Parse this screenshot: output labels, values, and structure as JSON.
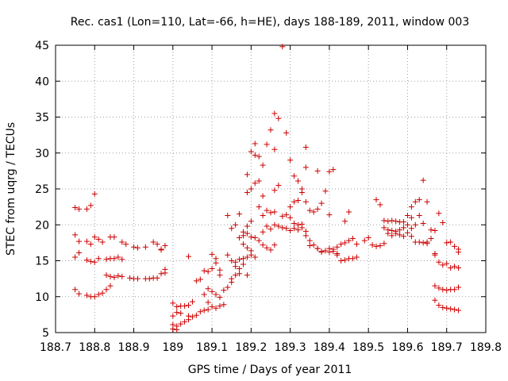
{
  "chart_data": {
    "type": "scatter",
    "title": "Rec. cas1 (Lon=110, Lat=-66, h=HE), days 188-189, 2011, window 003",
    "xlabel": "GPS time / Days of year 2011",
    "ylabel": "STEC from uqrg / TECUs",
    "xlim": [
      188.7,
      189.8
    ],
    "ylim": [
      5,
      45
    ],
    "grid": true,
    "marker": "+",
    "color": "#cc0000",
    "x_ticks": [
      188.7,
      188.8,
      188.9,
      189.0,
      189.1,
      189.2,
      189.3,
      189.4,
      189.5,
      189.6,
      189.7,
      189.8
    ],
    "x_tick_labels": [
      "188.7",
      "188.8",
      "188.9",
      "189",
      "189.1",
      "189.2",
      "189.3",
      "189.4",
      "189.5",
      "189.6",
      "189.7",
      "189.8"
    ],
    "y_ticks": [
      5,
      10,
      15,
      20,
      25,
      30,
      35,
      40,
      45
    ],
    "y_tick_labels": [
      "5",
      "10",
      "15",
      "20",
      "25",
      "30",
      "35",
      "40",
      "45"
    ],
    "points": [
      [
        188.75,
        22.4
      ],
      [
        188.76,
        22.2
      ],
      [
        188.78,
        22.2
      ],
      [
        188.79,
        22.7
      ],
      [
        188.8,
        24.3
      ],
      [
        188.75,
        18.6
      ],
      [
        188.76,
        17.7
      ],
      [
        188.78,
        17.7
      ],
      [
        188.79,
        17.3
      ],
      [
        188.8,
        18.3
      ],
      [
        188.81,
        18.0
      ],
      [
        188.82,
        17.6
      ],
      [
        188.84,
        18.3
      ],
      [
        188.85,
        18.3
      ],
      [
        188.87,
        17.6
      ],
      [
        188.88,
        17.3
      ],
      [
        188.9,
        16.9
      ],
      [
        188.91,
        16.8
      ],
      [
        188.93,
        16.9
      ],
      [
        188.95,
        17.6
      ],
      [
        188.96,
        17.3
      ],
      [
        188.97,
        16.6
      ],
      [
        188.98,
        17.1
      ],
      [
        188.75,
        15.5
      ],
      [
        188.76,
        16.1
      ],
      [
        188.78,
        15.1
      ],
      [
        188.79,
        14.9
      ],
      [
        188.8,
        14.8
      ],
      [
        188.81,
        15.3
      ],
      [
        188.83,
        15.2
      ],
      [
        188.84,
        15.3
      ],
      [
        188.85,
        15.3
      ],
      [
        188.86,
        15.5
      ],
      [
        188.87,
        15.2
      ],
      [
        188.97,
        16.5
      ],
      [
        188.83,
        13.0
      ],
      [
        188.84,
        12.8
      ],
      [
        188.85,
        12.7
      ],
      [
        188.86,
        12.9
      ],
      [
        188.87,
        12.8
      ],
      [
        188.89,
        12.6
      ],
      [
        188.9,
        12.5
      ],
      [
        188.91,
        12.5
      ],
      [
        188.93,
        12.5
      ],
      [
        188.94,
        12.5
      ],
      [
        188.95,
        12.6
      ],
      [
        188.96,
        12.6
      ],
      [
        188.97,
        13.2
      ],
      [
        188.98,
        13.8
      ],
      [
        188.98,
        13.3
      ],
      [
        188.75,
        11.0
      ],
      [
        188.76,
        10.4
      ],
      [
        188.78,
        10.2
      ],
      [
        188.79,
        10.0
      ],
      [
        188.8,
        10.0
      ],
      [
        188.81,
        10.3
      ],
      [
        188.82,
        10.5
      ],
      [
        188.83,
        11.0
      ],
      [
        188.84,
        11.5
      ],
      [
        189.0,
        9.1
      ],
      [
        189.01,
        8.6
      ],
      [
        189.02,
        8.7
      ],
      [
        189.03,
        8.7
      ],
      [
        189.04,
        8.8
      ],
      [
        189.05,
        9.3
      ],
      [
        189.0,
        7.3
      ],
      [
        189.01,
        7.8
      ],
      [
        189.02,
        7.7
      ],
      [
        189.04,
        7.3
      ],
      [
        189.05,
        7.2
      ],
      [
        189.06,
        7.4
      ],
      [
        189.07,
        7.9
      ],
      [
        189.08,
        8.1
      ],
      [
        189.09,
        8.2
      ],
      [
        189.0,
        6.1
      ],
      [
        189.01,
        5.9
      ],
      [
        189.02,
        6.2
      ],
      [
        189.03,
        6.5
      ],
      [
        189.04,
        6.8
      ],
      [
        189.0,
        5.5
      ],
      [
        189.01,
        5.4
      ],
      [
        189.04,
        15.6
      ],
      [
        189.06,
        12.2
      ],
      [
        189.07,
        12.4
      ],
      [
        189.08,
        13.6
      ],
      [
        189.09,
        13.5
      ],
      [
        189.1,
        13.9
      ],
      [
        189.1,
        15.9
      ],
      [
        189.11,
        15.3
      ],
      [
        189.11,
        14.7
      ],
      [
        189.12,
        13.7
      ],
      [
        189.12,
        13.0
      ],
      [
        189.08,
        10.3
      ],
      [
        189.09,
        11.1
      ],
      [
        189.1,
        10.7
      ],
      [
        189.11,
        10.3
      ],
      [
        189.12,
        9.9
      ],
      [
        189.13,
        10.9
      ],
      [
        189.14,
        11.3
      ],
      [
        189.15,
        12.0
      ],
      [
        189.09,
        9.2
      ],
      [
        189.1,
        8.6
      ],
      [
        189.11,
        8.4
      ],
      [
        189.12,
        8.7
      ],
      [
        189.13,
        8.9
      ],
      [
        189.14,
        21.3
      ],
      [
        189.15,
        19.5
      ],
      [
        189.16,
        20.0
      ],
      [
        189.17,
        21.5
      ],
      [
        189.18,
        19.0
      ],
      [
        189.19,
        19.8
      ],
      [
        189.2,
        20.5
      ],
      [
        189.14,
        15.8
      ],
      [
        189.15,
        15.0
      ],
      [
        189.16,
        14.8
      ],
      [
        189.17,
        15.2
      ],
      [
        189.18,
        15.3
      ],
      [
        189.19,
        15.5
      ],
      [
        189.2,
        15.8
      ],
      [
        189.21,
        15.5
      ],
      [
        189.2,
        16.4
      ],
      [
        189.19,
        16.8
      ],
      [
        189.18,
        17.3
      ],
      [
        189.15,
        12.5
      ],
      [
        189.16,
        13.0
      ],
      [
        189.17,
        13.2
      ],
      [
        189.17,
        13.9
      ],
      [
        189.18,
        14.5
      ],
      [
        189.19,
        13.0
      ],
      [
        189.16,
        14.2
      ],
      [
        189.17,
        18.2
      ],
      [
        189.18,
        18.5
      ],
      [
        189.19,
        18.8
      ],
      [
        189.2,
        18.3
      ],
      [
        189.21,
        18.2
      ],
      [
        189.22,
        17.8
      ],
      [
        189.23,
        19.0
      ],
      [
        189.24,
        19.8
      ],
      [
        189.25,
        19.4
      ],
      [
        189.26,
        20.0
      ],
      [
        189.27,
        19.8
      ],
      [
        189.28,
        19.6
      ],
      [
        189.29,
        19.5
      ],
      [
        189.3,
        19.2
      ],
      [
        189.31,
        19.5
      ],
      [
        189.32,
        19.3
      ],
      [
        189.33,
        19.6
      ],
      [
        189.34,
        19.1
      ],
      [
        189.35,
        17.8
      ],
      [
        189.36,
        17.2
      ],
      [
        189.37,
        16.7
      ],
      [
        189.38,
        16.3
      ],
      [
        189.39,
        16.4
      ],
      [
        189.4,
        16.2
      ],
      [
        189.41,
        16.6
      ],
      [
        189.42,
        16.0
      ],
      [
        189.19,
        24.5
      ],
      [
        189.2,
        25.0
      ],
      [
        189.21,
        25.8
      ],
      [
        189.22,
        26.1
      ],
      [
        189.19,
        27.0
      ],
      [
        189.2,
        30.2
      ],
      [
        189.21,
        29.7
      ],
      [
        189.21,
        31.3
      ],
      [
        189.22,
        29.5
      ],
      [
        189.23,
        28.3
      ],
      [
        189.24,
        31.2
      ],
      [
        189.25,
        33.2
      ],
      [
        189.26,
        35.5
      ],
      [
        189.27,
        34.8
      ],
      [
        189.26,
        30.5
      ],
      [
        189.28,
        44.8
      ],
      [
        189.29,
        32.8
      ],
      [
        189.3,
        29.0
      ],
      [
        189.31,
        26.8
      ],
      [
        189.32,
        26.1
      ],
      [
        189.33,
        25.0
      ],
      [
        189.34,
        30.8
      ],
      [
        189.34,
        28.0
      ],
      [
        189.37,
        27.5
      ],
      [
        189.39,
        24.7
      ],
      [
        189.4,
        27.4
      ],
      [
        189.41,
        27.7
      ],
      [
        189.22,
        22.5
      ],
      [
        189.23,
        24.0
      ],
      [
        189.23,
        21.3
      ],
      [
        189.24,
        22.0
      ],
      [
        189.25,
        21.7
      ],
      [
        189.26,
        21.8
      ],
      [
        189.26,
        24.8
      ],
      [
        189.27,
        25.5
      ],
      [
        189.28,
        21.2
      ],
      [
        189.29,
        21.4
      ],
      [
        189.3,
        21.0
      ],
      [
        189.3,
        22.5
      ],
      [
        189.31,
        23.2
      ],
      [
        189.32,
        23.4
      ],
      [
        189.33,
        24.5
      ],
      [
        189.34,
        23.2
      ],
      [
        189.35,
        22.0
      ],
      [
        189.36,
        21.8
      ],
      [
        189.37,
        22.2
      ],
      [
        189.38,
        23.0
      ],
      [
        189.4,
        21.4
      ],
      [
        189.23,
        17.2
      ],
      [
        189.24,
        16.8
      ],
      [
        189.25,
        16.5
      ],
      [
        189.26,
        17.2
      ],
      [
        189.31,
        20.2
      ],
      [
        189.32,
        20.0
      ],
      [
        189.33,
        20.1
      ],
      [
        189.34,
        18.5
      ],
      [
        189.35,
        17.1
      ],
      [
        189.37,
        16.7
      ],
      [
        189.38,
        16.2
      ],
      [
        189.4,
        16.7
      ],
      [
        189.41,
        16.3
      ],
      [
        189.42,
        15.8
      ],
      [
        189.43,
        15.0
      ],
      [
        189.44,
        15.1
      ],
      [
        189.45,
        15.3
      ],
      [
        189.46,
        15.3
      ],
      [
        189.47,
        15.5
      ],
      [
        189.47,
        17.3
      ],
      [
        189.49,
        17.8
      ],
      [
        189.5,
        18.2
      ],
      [
        189.51,
        17.2
      ],
      [
        189.52,
        17.0
      ],
      [
        189.53,
        17.1
      ],
      [
        189.54,
        17.4
      ],
      [
        189.42,
        16.9
      ],
      [
        189.43,
        17.3
      ],
      [
        189.44,
        17.5
      ],
      [
        189.45,
        17.8
      ],
      [
        189.46,
        18.1
      ],
      [
        189.44,
        20.5
      ],
      [
        189.45,
        21.8
      ],
      [
        189.52,
        23.5
      ],
      [
        189.53,
        22.8
      ],
      [
        189.54,
        20.6
      ],
      [
        189.55,
        20.5
      ],
      [
        189.56,
        20.6
      ],
      [
        189.57,
        20.5
      ],
      [
        189.58,
        20.4
      ],
      [
        189.59,
        20.4
      ],
      [
        189.6,
        21.3
      ],
      [
        189.61,
        21.0
      ],
      [
        189.62,
        23.2
      ],
      [
        189.63,
        23.5
      ],
      [
        189.64,
        26.2
      ],
      [
        189.65,
        23.2
      ],
      [
        189.61,
        22.5
      ],
      [
        189.54,
        19.6
      ],
      [
        189.55,
        19.3
      ],
      [
        189.56,
        19.2
      ],
      [
        189.57,
        19.1
      ],
      [
        189.58,
        19.3
      ],
      [
        189.59,
        19.6
      ],
      [
        189.6,
        20.0
      ],
      [
        189.61,
        19.5
      ],
      [
        189.62,
        20.0
      ],
      [
        189.63,
        21.3
      ],
      [
        189.64,
        20.2
      ],
      [
        189.55,
        18.8
      ],
      [
        189.56,
        18.5
      ],
      [
        189.57,
        18.8
      ],
      [
        189.58,
        18.6
      ],
      [
        189.59,
        18.4
      ],
      [
        189.6,
        18.9
      ],
      [
        189.61,
        18.4
      ],
      [
        189.62,
        17.6
      ],
      [
        189.63,
        17.6
      ],
      [
        189.64,
        17.5
      ],
      [
        189.65,
        17.4
      ],
      [
        189.66,
        19.3
      ],
      [
        189.67,
        16.0
      ],
      [
        189.65,
        17.6
      ],
      [
        189.66,
        18.1
      ],
      [
        189.67,
        19.2
      ],
      [
        189.68,
        21.6
      ],
      [
        189.69,
        20.3
      ],
      [
        189.7,
        17.5
      ],
      [
        189.71,
        17.6
      ],
      [
        189.72,
        17.0
      ],
      [
        189.73,
        16.2
      ],
      [
        189.73,
        16.6
      ],
      [
        189.67,
        15.8
      ],
      [
        189.68,
        14.8
      ],
      [
        189.69,
        14.4
      ],
      [
        189.7,
        14.6
      ],
      [
        189.71,
        14.0
      ],
      [
        189.72,
        14.2
      ],
      [
        189.73,
        14.0
      ],
      [
        189.67,
        11.5
      ],
      [
        189.68,
        11.2
      ],
      [
        189.69,
        11.0
      ],
      [
        189.7,
        10.9
      ],
      [
        189.71,
        11.0
      ],
      [
        189.72,
        11.0
      ],
      [
        189.73,
        11.3
      ],
      [
        189.67,
        9.5
      ],
      [
        189.68,
        8.8
      ],
      [
        189.69,
        8.5
      ],
      [
        189.7,
        8.4
      ],
      [
        189.71,
        8.3
      ],
      [
        189.72,
        8.2
      ],
      [
        189.73,
        8.1
      ]
    ]
  }
}
